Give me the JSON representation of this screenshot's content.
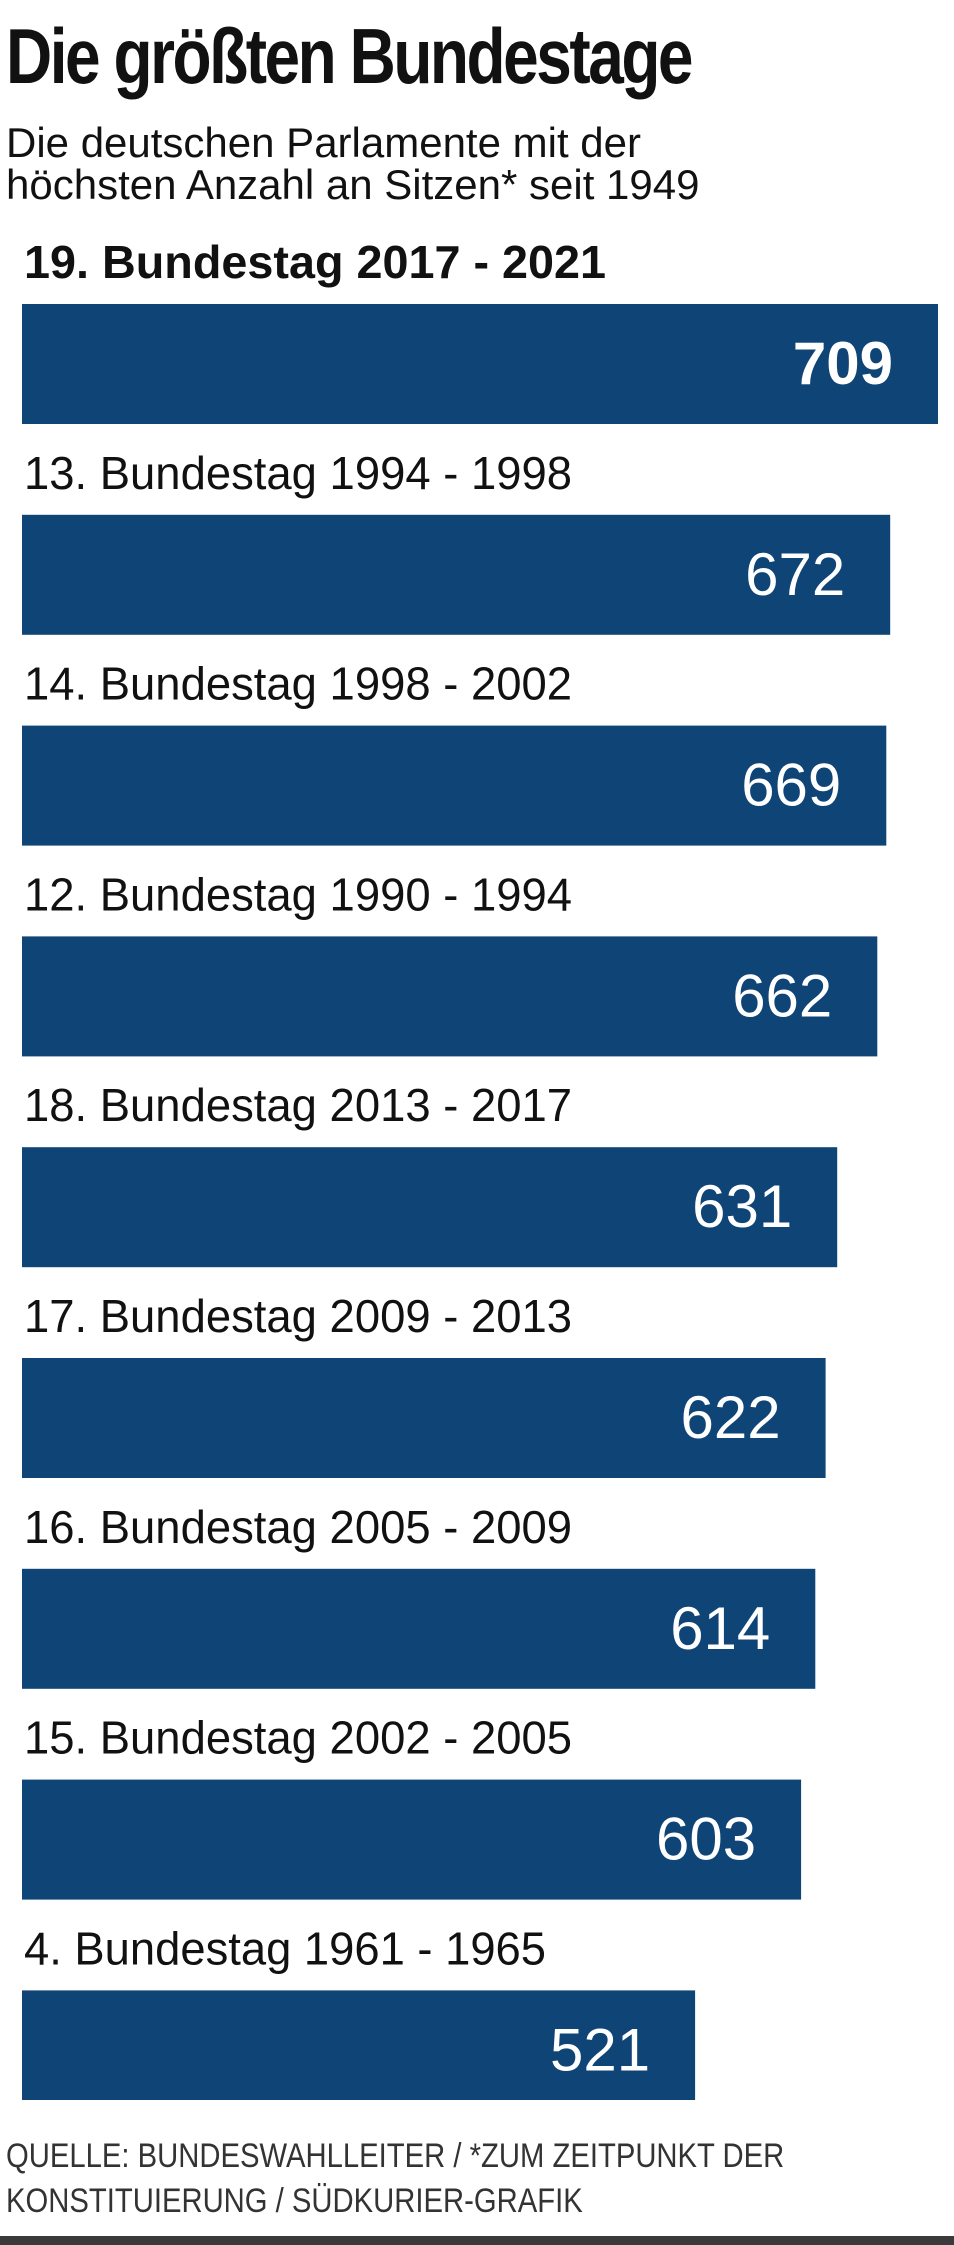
{
  "title": "Die größten Bundestage",
  "subtitle": {
    "line1": "Die deutschen Parlamente mit der",
    "line2": "höchsten Anzahl an Sitzen* seit 1949"
  },
  "source": {
    "line1": "QUELLE: BUNDESWAHLLEITER / *ZUM ZEITPUNKT DER",
    "line2": "KONSTITUIERUNG / SÜDKURIER-GRAFIK"
  },
  "colors": {
    "bar": "#0f4476",
    "value_text": "#ffffff",
    "label_text": "#111111",
    "rule": "#3a3a3a"
  },
  "chart_data": {
    "type": "bar",
    "orientation": "horizontal",
    "categories": [
      "19. Bundestag 2017 - 2021",
      "13. Bundestag 1994 - 1998",
      "14. Bundestag 1998 - 2002",
      "12. Bundestag 1990 - 1994",
      "18. Bundestag 2013 - 2017",
      "17. Bundestag 2009 - 2013",
      "16. Bundestag 2005 - 2009",
      "15. Bundestag 2002 - 2005",
      "4. Bundestag 1961 - 1965"
    ],
    "values": [
      709,
      672,
      669,
      662,
      631,
      622,
      614,
      603,
      521
    ],
    "highlight_index": 0,
    "value_labels_inside_bars": true,
    "grid": false
  }
}
